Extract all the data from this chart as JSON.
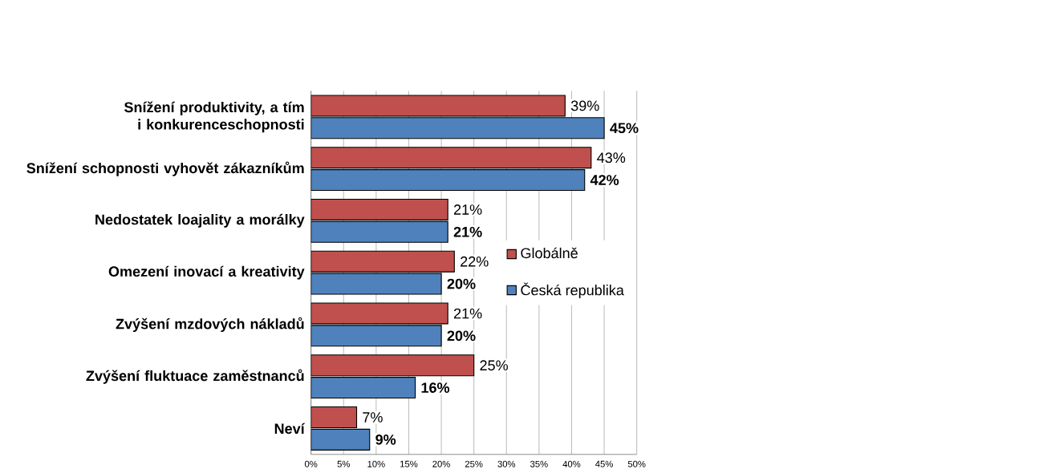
{
  "chart_data": {
    "type": "bar",
    "orientation": "horizontal",
    "categories": [
      "Snížení produktivity, a tím i konkurenceschopnosti",
      "Snížení schopnosti vyhovět zákazníkům",
      "Nedostatek loajality a morálky",
      "Omezení inovací a kreativity",
      "Zvýšení mzdových nákladů",
      "Zvýšení fluktuace zaměstnanců",
      "Neví"
    ],
    "series": [
      {
        "name": "Globálně",
        "color": "#c0504d",
        "values": [
          39,
          43,
          21,
          22,
          21,
          25,
          7
        ],
        "value_labels": [
          "39%",
          "43%",
          "21%",
          "22%",
          "21%",
          "25%",
          "7%"
        ]
      },
      {
        "name": "Česká republika",
        "color": "#4f81bd",
        "values": [
          45,
          42,
          21,
          20,
          20,
          16,
          9
        ],
        "value_labels": [
          "45%",
          "42%",
          "21%",
          "20%",
          "20%",
          "16%",
          "9%"
        ]
      }
    ],
    "xlim": [
      0,
      50
    ],
    "xticks": [
      {
        "value": 0,
        "label": "0%"
      },
      {
        "value": 5,
        "label": "5%"
      },
      {
        "value": 10,
        "label": "10%"
      },
      {
        "value": 15,
        "label": "15%"
      },
      {
        "value": 20,
        "label": "20%"
      },
      {
        "value": 25,
        "label": "25%"
      },
      {
        "value": 30,
        "label": "30%"
      },
      {
        "value": 35,
        "label": "35%"
      },
      {
        "value": 40,
        "label": "40%"
      },
      {
        "value": 45,
        "label": "45%"
      },
      {
        "value": 50,
        "label": "50%"
      }
    ],
    "grid": "x",
    "legend": "right"
  }
}
